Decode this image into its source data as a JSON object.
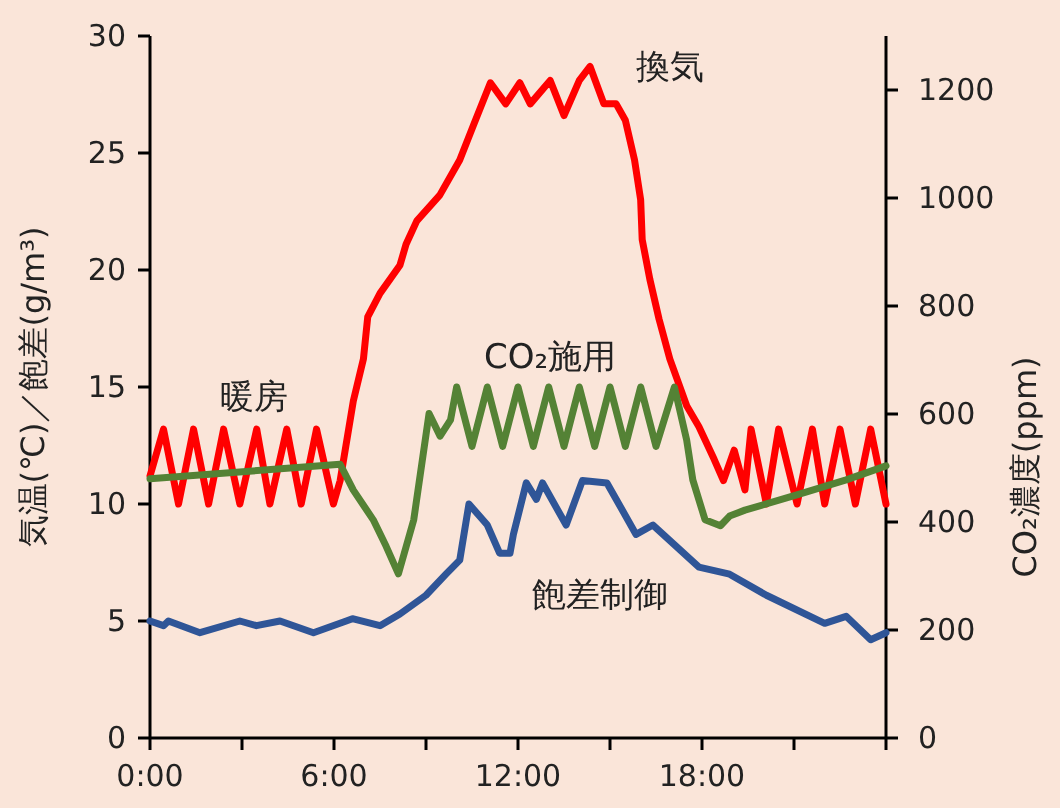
{
  "chart_data": {
    "type": "line",
    "ylabel": "気温(℃)／飽差(g/m³)",
    "y2label": "CO₂濃度(ppm)",
    "xlim": [
      0,
      24
    ],
    "xticks": [
      {
        "value": 0,
        "label": "0:00"
      },
      {
        "value": 3,
        "label": null
      },
      {
        "value": 6,
        "label": "6:00"
      },
      {
        "value": 9,
        "label": null
      },
      {
        "value": 12,
        "label": "12:00"
      },
      {
        "value": 15,
        "label": null
      },
      {
        "value": 18,
        "label": "18:00"
      },
      {
        "value": 21,
        "label": null
      },
      {
        "value": 24,
        "label": null
      }
    ],
    "ylim": [
      0,
      30
    ],
    "yticks": [
      0,
      5,
      10,
      15,
      20,
      25,
      30
    ],
    "y2lim": [
      0,
      1300
    ],
    "y2ticks": [
      0,
      200,
      400,
      600,
      800,
      1000,
      1200
    ],
    "grid": false,
    "line_style": "solid",
    "marker": "none",
    "series": [
      {
        "color": "#ff0000",
        "x": [
          0,
          0.44,
          0.93,
          1.42,
          1.91,
          2.4,
          2.93,
          3.48,
          3.91,
          4.46,
          4.93,
          5.43,
          5.98,
          6.2,
          6.63,
          6.96,
          7.1,
          7.5,
          8.15,
          8.35,
          8.7,
          9.45,
          10.1,
          10.55,
          11.1,
          11.6,
          12.06,
          12.4,
          13.05,
          13.5,
          14.0,
          14.35,
          14.8,
          15.2,
          15.5,
          15.8,
          16.0,
          16.05,
          16.3,
          16.6,
          16.95,
          17.5,
          17.9,
          18.4,
          18.7,
          19.05,
          19.4,
          19.6,
          20.1,
          20.5,
          21.1,
          21.6,
          22.0,
          22.5,
          23.0,
          23.5,
          24
        ],
        "values": [
          11.2,
          13.2,
          10.0,
          13.2,
          10.0,
          13.2,
          10.0,
          13.2,
          10.0,
          13.2,
          10.0,
          13.2,
          10.0,
          11,
          14.4,
          16.2,
          18,
          19,
          20.2,
          21.1,
          22.1,
          23.2,
          24.7,
          26.2,
          28,
          27.1,
          28,
          27.1,
          28.1,
          26.6,
          28.1,
          28.7,
          27.1,
          27.1,
          26.4,
          24.7,
          23,
          21.3,
          19.6,
          17.9,
          16.2,
          14.2,
          13.3,
          11.9,
          11,
          12.3,
          10.6,
          13.2,
          10.0,
          13.2,
          10.0,
          13.2,
          10.0,
          13.2,
          10.0,
          13.2,
          10.0
        ]
      },
      {
        "color": "#548235",
        "axis": "y2",
        "x": [
          0,
          6.2,
          6.63,
          7.28,
          7.7,
          8.1,
          8.6,
          9.1,
          9.46,
          9.8,
          10.0,
          10.5,
          11.0,
          11.5,
          12.0,
          12.5,
          13.0,
          13.5,
          14.0,
          14.5,
          15.0,
          15.5,
          16.0,
          16.5,
          17.1,
          17.5,
          17.7,
          18.1,
          18.6,
          18.9,
          19.4,
          21.2,
          22.7,
          24
        ],
        "values": [
          480,
          507,
          459,
          404,
          355,
          304,
          404,
          601,
          559,
          589,
          650,
          540,
          650,
          540,
          650,
          540,
          650,
          540,
          650,
          540,
          650,
          540,
          650,
          540,
          650,
          552,
          478,
          404,
          393,
          411,
          422,
          452,
          478,
          504
        ]
      },
      {
        "color": "#2f5597",
        "x": [
          0,
          0.44,
          0.6,
          1.63,
          2.93,
          3.47,
          4.24,
          5.33,
          6.4,
          6.6,
          7.5,
          8.15,
          9,
          9.65,
          10.1,
          10.4,
          11,
          11.4,
          11.74,
          11.85,
          12.27,
          12.6,
          12.8,
          13.57,
          14.1,
          14.9,
          15.85,
          16.4,
          17.9,
          18.9,
          20.1,
          22.0,
          22.7,
          23.5,
          24
        ],
        "values": [
          5.0,
          4.8,
          5.0,
          4.5,
          5.0,
          4.8,
          5.0,
          4.5,
          5.0,
          5.1,
          4.8,
          5.3,
          6.1,
          7.0,
          7.6,
          10.0,
          9.1,
          7.9,
          7.9,
          8.7,
          10.9,
          10.2,
          10.9,
          9.1,
          11.0,
          10.9,
          8.7,
          9.1,
          7.3,
          7.0,
          6.1,
          4.9,
          5.2,
          4.2,
          4.5
        ]
      }
    ],
    "annotations": [
      "暖房",
      "換気",
      "CO₂施用",
      "飽差制御"
    ]
  }
}
